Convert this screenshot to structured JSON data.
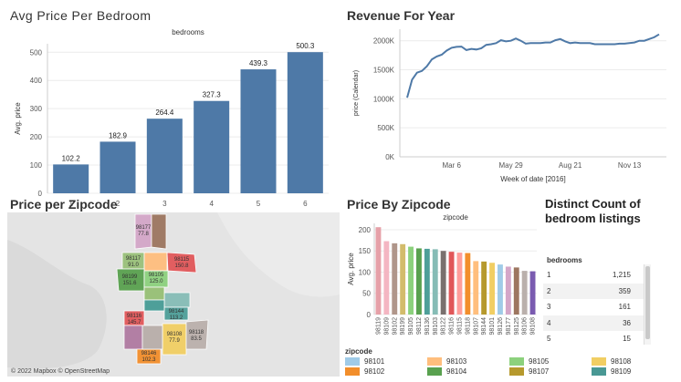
{
  "panels": {
    "avg_price_title": "Avg Price Per Bedroom",
    "revenue_title": "Revenue For Year",
    "zip_map_title": "Price per Zipcode",
    "price_by_zip_title": "Price By Zipcode",
    "distinct_title": "Distinct Count of bedroom listings"
  },
  "bedroom_chart": {
    "header": "bedrooms",
    "ylabel": "Avg. price",
    "yticks": [
      "0",
      "100",
      "200",
      "300",
      "400",
      "500"
    ]
  },
  "revenue_chart": {
    "ylabel": "price (Calendar)",
    "xlabel": "Week of date [2016]",
    "yticks": [
      "0K",
      "500K",
      "1000K",
      "1500K",
      "2000K"
    ],
    "xticks": [
      "Mar 6",
      "May 29",
      "Aug 21",
      "Nov 13"
    ]
  },
  "zip_chart": {
    "header": "zipcode",
    "ylabel": "Avg. price",
    "yticks": [
      "0",
      "50",
      "100",
      "150",
      "200"
    ]
  },
  "chart_data": [
    {
      "type": "bar",
      "title": "Avg Price Per Bedroom",
      "xlabel": "bedrooms",
      "ylabel": "Avg. price",
      "categories": [
        "1",
        "2",
        "3",
        "4",
        "5",
        "6"
      ],
      "values": [
        102.2,
        182.9,
        264.4,
        327.3,
        439.3,
        500.3
      ],
      "ylim": [
        0,
        530
      ],
      "color": "#4e79a7"
    },
    {
      "type": "line",
      "title": "Revenue For Year",
      "xlabel": "Week of date [2016]",
      "ylabel": "price (Calendar)",
      "x": [
        "2016-01-03",
        "2016-01-10",
        "2016-01-17",
        "2016-01-24",
        "2016-01-31",
        "2016-02-07",
        "2016-02-14",
        "2016-02-21",
        "2016-02-28",
        "2016-03-06",
        "2016-03-13",
        "2016-03-20",
        "2016-03-27",
        "2016-04-03",
        "2016-04-10",
        "2016-04-17",
        "2016-04-24",
        "2016-05-01",
        "2016-05-08",
        "2016-05-15",
        "2016-05-22",
        "2016-05-29",
        "2016-06-05",
        "2016-06-12",
        "2016-06-19",
        "2016-06-26",
        "2016-07-03",
        "2016-07-10",
        "2016-07-17",
        "2016-07-24",
        "2016-07-31",
        "2016-08-07",
        "2016-08-14",
        "2016-08-21",
        "2016-08-28",
        "2016-09-04",
        "2016-09-11",
        "2016-09-18",
        "2016-09-25",
        "2016-10-02",
        "2016-10-09",
        "2016-10-16",
        "2016-10-23",
        "2016-10-30",
        "2016-11-06",
        "2016-11-13",
        "2016-11-20",
        "2016-11-27",
        "2016-12-04",
        "2016-12-11",
        "2016-12-18",
        "2016-12-25"
      ],
      "values": [
        1020,
        1330,
        1450,
        1480,
        1560,
        1680,
        1730,
        1760,
        1830,
        1880,
        1895,
        1900,
        1840,
        1860,
        1850,
        1870,
        1930,
        1940,
        1960,
        2010,
        1990,
        2000,
        2040,
        2000,
        1950,
        1960,
        1960,
        1960,
        1970,
        1970,
        2010,
        2030,
        1990,
        1960,
        1970,
        1960,
        1960,
        1960,
        1940,
        1940,
        1940,
        1940,
        1940,
        1950,
        1950,
        1960,
        1970,
        2000,
        2000,
        2030,
        2060,
        2110
      ],
      "ylim": [
        0,
        2200
      ],
      "color": "#4e79a7"
    },
    {
      "type": "bar",
      "title": "Price By Zipcode",
      "xlabel": "zipcode",
      "ylabel": "Avg. price",
      "categories": [
        "98119",
        "98109",
        "98102",
        "98199",
        "98105",
        "98112",
        "98136",
        "98103",
        "98122",
        "98116",
        "98115",
        "98118",
        "98107",
        "98144",
        "98101",
        "98126",
        "98177",
        "98125",
        "98106",
        "98108"
      ],
      "values": [
        206,
        173,
        168,
        166,
        160,
        156,
        155,
        154,
        150,
        148,
        146,
        145,
        126,
        125,
        122,
        118,
        113,
        111,
        103,
        102
      ],
      "colors": [
        "#e6a0a8",
        "#f4b6c2",
        "#b0968a",
        "#d3bc6c",
        "#8cd17d",
        "#59a14f",
        "#4e9f99",
        "#86bcb6",
        "#79706e",
        "#e15759",
        "#ff9d9a",
        "#f28e2b",
        "#ffbe7d",
        "#b6992d",
        "#f1ce63",
        "#a0cbe8",
        "#d4a6c8",
        "#9d7660",
        "#bab0ac",
        "#7a5bb0"
      ],
      "ylim": [
        0,
        215
      ]
    }
  ],
  "distinct_table": {
    "header": "bedrooms",
    "rows": [
      {
        "key": "1",
        "value": "1,215"
      },
      {
        "key": "2",
        "value": "359"
      },
      {
        "key": "3",
        "value": "161"
      },
      {
        "key": "4",
        "value": "36"
      },
      {
        "key": "5",
        "value": "15"
      }
    ]
  },
  "legend": {
    "title": "zipcode",
    "items": [
      {
        "label": "98101",
        "color": "#a0cbe8"
      },
      {
        "label": "98103",
        "color": "#ffbe7d"
      },
      {
        "label": "98105",
        "color": "#8cd17d"
      },
      {
        "label": "98108",
        "color": "#f1ce63"
      },
      {
        "label": "98102",
        "color": "#f28e2b"
      },
      {
        "label": "98104",
        "color": "#59a14f"
      },
      {
        "label": "98107",
        "color": "#b6992d"
      },
      {
        "label": "98109",
        "color": "#499894"
      }
    ]
  },
  "map": {
    "credit": "© 2022 Mapbox © OpenStreetMap",
    "regions": [
      {
        "zip": "98177",
        "value": "77.8",
        "color": "#d4a6c8"
      },
      {
        "zip": "",
        "value": "",
        "color": "#9d7660"
      },
      {
        "zip": "98117",
        "value": "91.0",
        "color": "#9ac17a"
      },
      {
        "zip": "98103",
        "value": "",
        "color": "#ffbe7d"
      },
      {
        "zip": "98115",
        "value": "150.8",
        "color": "#e15759"
      },
      {
        "zip": "98199",
        "value": "151.6",
        "color": "#59a14f"
      },
      {
        "zip": "98105",
        "value": "125.0",
        "color": "#8cd17d"
      },
      {
        "zip": "98122",
        "value": "",
        "color": "#86bcb6"
      },
      {
        "zip": "98144",
        "value": "113.2",
        "color": "#4e9f99"
      },
      {
        "zip": "98116",
        "value": "145.7",
        "color": "#e15759"
      },
      {
        "zip": "98136",
        "value": "",
        "color": "#b07aa1"
      },
      {
        "zip": "98108",
        "value": "77.9",
        "color": "#f1ce63"
      },
      {
        "zip": "98118",
        "value": "83.5",
        "color": "#bab0ac"
      },
      {
        "zip": "98146",
        "value": "102.3",
        "color": "#f28e2b"
      }
    ]
  }
}
